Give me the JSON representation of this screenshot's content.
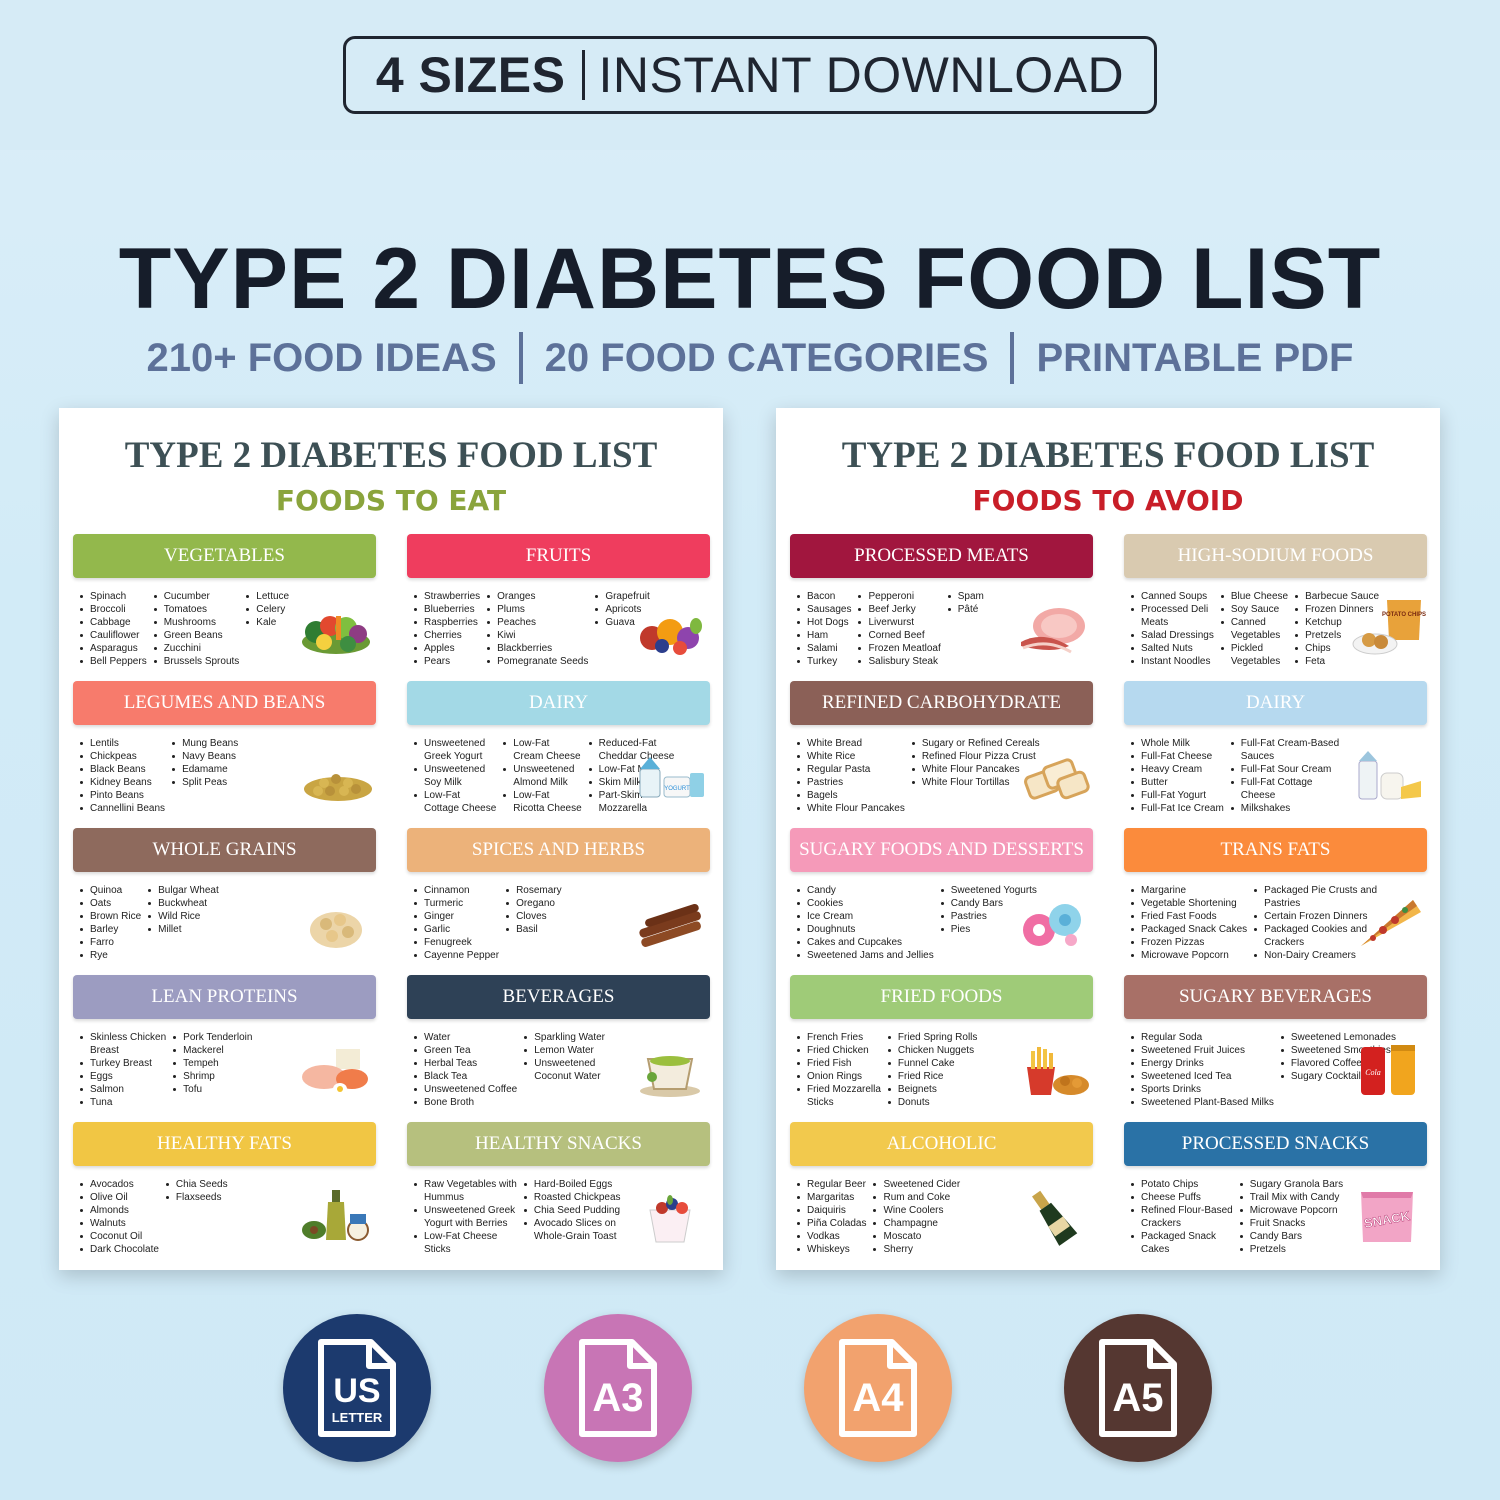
{
  "banner": {
    "bold": "4 SIZES",
    "rest": "INSTANT DOWNLOAD"
  },
  "main_title": "TYPE 2 DIABETES FOOD LIST",
  "subtitle": {
    "part1": "210+ FOOD IDEAS",
    "part2": "20 FOOD CATEGORIES",
    "part3": "PRINTABLE PDF"
  },
  "left_sheet": {
    "title": "TYPE 2 DIABETES FOOD LIST",
    "subtitle": "FOODS TO EAT",
    "categories": [
      {
        "name": "VEGETABLES",
        "color": "#93b84c",
        "cols": [
          [
            "Spinach",
            "Broccoli",
            "Cabbage",
            "Cauliflower",
            "Asparagus",
            "Bell Peppers"
          ],
          [
            "Cucumber",
            "Tomatoes",
            "Mushrooms",
            "Green Beans",
            "Zucchini",
            "Brussels Sprouts"
          ],
          [
            "Lettuce",
            "Celery",
            "Kale"
          ]
        ]
      },
      {
        "name": "FRUITS",
        "color": "#ef3d5e",
        "cols": [
          [
            "Strawberries",
            "Blueberries",
            "Raspberries",
            "Cherries",
            "Apples",
            "Pears"
          ],
          [
            "Oranges",
            "Plums",
            "Peaches",
            "Kiwi",
            "Blackberries",
            "Pomegranate Seeds"
          ],
          [
            "Grapefruit",
            "Apricots",
            "Guava"
          ]
        ]
      },
      {
        "name": "LEGUMES AND BEANS",
        "color": "#f77b6c",
        "cols": [
          [
            "Lentils",
            "Chickpeas",
            "Black Beans",
            "Kidney Beans",
            "Pinto Beans",
            "Cannellini Beans"
          ],
          [
            "Mung Beans",
            "Navy Beans",
            "Edamame",
            "Split Peas"
          ]
        ]
      },
      {
        "name": "DAIRY",
        "color": "#a3d9e6",
        "cols": [
          [
            "Unsweetened",
            "~Greek Yogurt",
            "Unsweetened",
            "~Soy Milk",
            "Low-Fat",
            "~Cottage Cheese"
          ],
          [
            "Low-Fat",
            "~Cream Cheese",
            "Unsweetened",
            "~Almond Milk",
            "Low-Fat",
            "~Ricotta Cheese"
          ],
          [
            "Reduced-Fat",
            "~Cheddar Cheese",
            "Low-Fat Milk",
            "Skim Milk",
            "Part-Skim",
            "~Mozzarella"
          ]
        ]
      },
      {
        "name": "WHOLE GRAINS",
        "color": "#8e6a5d",
        "cols": [
          [
            "Quinoa",
            "Oats",
            "Brown Rice",
            "Barley",
            "Farro",
            "Rye"
          ],
          [
            "Bulgar Wheat",
            "Buckwheat",
            "Wild Rice",
            "Millet"
          ]
        ]
      },
      {
        "name": "SPICES AND HERBS",
        "color": "#ecb27a",
        "cols": [
          [
            "Cinnamon",
            "Turmeric",
            "Ginger",
            "Garlic",
            "Fenugreek",
            "Cayenne Pepper"
          ],
          [
            "Rosemary",
            "Oregano",
            "Cloves",
            "Basil"
          ]
        ]
      },
      {
        "name": "LEAN PROTEINS",
        "color": "#9c9cc1",
        "cols": [
          [
            "Skinless Chicken",
            "~Breast",
            "Turkey Breast",
            "Eggs",
            "Salmon",
            "Tuna"
          ],
          [
            "Pork Tenderloin",
            "Mackerel",
            "Tempeh",
            "Shrimp",
            "Tofu"
          ]
        ]
      },
      {
        "name": "BEVERAGES",
        "color": "#2e4156",
        "cols": [
          [
            "Water",
            "Green Tea",
            "Herbal Teas",
            "Black Tea",
            "Unsweetened Coffee",
            "Bone Broth"
          ],
          [
            "Sparkling Water",
            "Lemon Water",
            "Unsweetened",
            "~Coconut Water"
          ]
        ]
      },
      {
        "name": "HEALTHY FATS",
        "color": "#f1c644",
        "cols": [
          [
            "Avocados",
            "Olive Oil",
            "Almonds",
            "Walnuts",
            "Coconut Oil",
            "Dark Chocolate"
          ],
          [
            "Chia Seeds",
            "Flaxseeds"
          ]
        ]
      },
      {
        "name": "HEALTHY SNACKS",
        "color": "#b6c07e",
        "cols": [
          [
            "Raw Vegetables with",
            "~Hummus",
            "Unsweetened Greek",
            "~Yogurt with Berries",
            "Low-Fat Cheese",
            "~Sticks"
          ],
          [
            "Hard-Boiled Eggs",
            "Roasted Chickpeas",
            "Chia Seed Pudding",
            "Avocado Slices on",
            "~Whole-Grain Toast"
          ]
        ]
      }
    ]
  },
  "right_sheet": {
    "title": "TYPE 2 DIABETES FOOD LIST",
    "subtitle": "FOODS TO AVOID",
    "categories": [
      {
        "name": "PROCESSED MEATS",
        "color": "#a1163e",
        "cols": [
          [
            "Bacon",
            "Sausages",
            "Hot Dogs",
            "Ham",
            "Salami",
            "Turkey"
          ],
          [
            "Pepperoni",
            "Beef Jerky",
            "Liverwurst",
            "Corned Beef",
            "Frozen Meatloaf",
            "Salisbury Steak"
          ],
          [
            "Spam",
            "Pâté"
          ]
        ]
      },
      {
        "name": "HIGH-SODIUM FOODS",
        "color": "#d9cab0",
        "cols": [
          [
            "Canned Soups",
            "Processed Deli",
            "~Meats",
            "Salad Dressings",
            "Salted Nuts",
            "Instant Noodles"
          ],
          [
            "Blue Cheese",
            "Soy Sauce",
            "Canned",
            "~Vegetables",
            "Pickled",
            "~Vegetables"
          ],
          [
            "Barbecue Sauce",
            "Frozen Dinners",
            "Ketchup",
            "Pretzels",
            "Chips",
            "Feta"
          ]
        ]
      },
      {
        "name": "REFINED CARBOHYDRATE",
        "color": "#8b6057",
        "cols": [
          [
            "White Bread",
            "White Rice",
            "Regular Pasta",
            "Pastries",
            "Bagels",
            "White Flour Pancakes"
          ],
          [
            "Sugary or Refined Cereals",
            "Refined Flour Pizza Crust",
            "White Flour Pancakes",
            "White Flour Tortillas"
          ]
        ]
      },
      {
        "name": "DAIRY",
        "color": "#b6d9ef",
        "cols": [
          [
            "Whole Milk",
            "Full-Fat Cheese",
            "Heavy Cream",
            "Butter",
            "Full-Fat Yogurt",
            "Full-Fat Ice Cream"
          ],
          [
            "Full-Fat Cream-Based",
            "~Sauces",
            "Full-Fat Sour Cream",
            "Full-Fat Cottage",
            "~Cheese",
            "Milkshakes"
          ]
        ]
      },
      {
        "name": "SUGARY FOODS AND DESSERTS",
        "color": "#f59ab9",
        "cols": [
          [
            "Candy",
            "Cookies",
            "Ice Cream",
            "Doughnuts",
            "Cakes and Cupcakes",
            "Sweetened Jams and Jellies"
          ],
          [
            "Sweetened Yogurts",
            "Candy Bars",
            "Pastries",
            "Pies"
          ]
        ]
      },
      {
        "name": "TRANS FATS",
        "color": "#fb8b3c",
        "cols": [
          [
            "Margarine",
            "Vegetable Shortening",
            "Fried Fast Foods",
            "Packaged Snack Cakes",
            "Frozen Pizzas",
            "Microwave Popcorn"
          ],
          [
            "Packaged Pie Crusts and",
            "~Pastries",
            "Certain Frozen Dinners",
            "Packaged Cookies and",
            "~Crackers",
            "Non-Dairy Creamers"
          ]
        ]
      },
      {
        "name": "FRIED FOODS",
        "color": "#9fcb78",
        "cols": [
          [
            "French Fries",
            "Fried Chicken",
            "Fried Fish",
            "Onion Rings",
            "Fried Mozzarella",
            "~Sticks"
          ],
          [
            "Fried Spring Rolls",
            "Chicken Nuggets",
            "Funnel Cake",
            "Fried Rice",
            "Beignets",
            "Donuts"
          ]
        ]
      },
      {
        "name": "SUGARY BEVERAGES",
        "color": "#a87067",
        "cols": [
          [
            "Regular Soda",
            "Sweetened Fruit Juices",
            "Energy Drinks",
            "Sweetened Iced Tea",
            "Sports Drinks",
            "Sweetened Plant-Based Milks"
          ],
          [
            "Sweetened Lemonades",
            "Sweetened Smoothies",
            "Flavored Coffees",
            "Sugary Cocktails"
          ]
        ]
      },
      {
        "name": "ALCOHOLIC",
        "color": "#f2c94d",
        "cols": [
          [
            "Regular Beer",
            "Margaritas",
            "Daiquiris",
            "Piña Coladas",
            "Vodkas",
            "Whiskeys"
          ],
          [
            "Sweetened Cider",
            "Rum and Coke",
            "Wine Coolers",
            "Champagne",
            "Moscato",
            "Sherry"
          ]
        ]
      },
      {
        "name": "PROCESSED SNACKS",
        "color": "#2a72a6",
        "cols": [
          [
            "Potato Chips",
            "Cheese Puffs",
            "Refined Flour-Based",
            "~Crackers",
            "Packaged Snack",
            "~Cakes"
          ],
          [
            "Sugary Granola Bars",
            "Trail Mix with Candy",
            "Microwave Popcorn",
            "Fruit Snacks",
            "Candy Bars",
            "Pretzels"
          ]
        ]
      }
    ]
  },
  "art_labels": {
    "chips_bag": "POTATO CHIPS",
    "soda_can": "Cola",
    "snack_bag": "SNACK",
    "yogurt": "YOGURT"
  },
  "sizes": [
    {
      "label_big": "US",
      "label_small": "LETTER",
      "color": "#1c3a6e",
      "icon": "document-icon"
    },
    {
      "label_big": "A3",
      "label_small": "",
      "color": "#c875b5",
      "icon": "document-icon"
    },
    {
      "label_big": "A4",
      "label_small": "",
      "color": "#f2a26e",
      "icon": "document-icon"
    },
    {
      "label_big": "A5",
      "label_small": "",
      "color": "#553731",
      "icon": "document-icon"
    }
  ]
}
